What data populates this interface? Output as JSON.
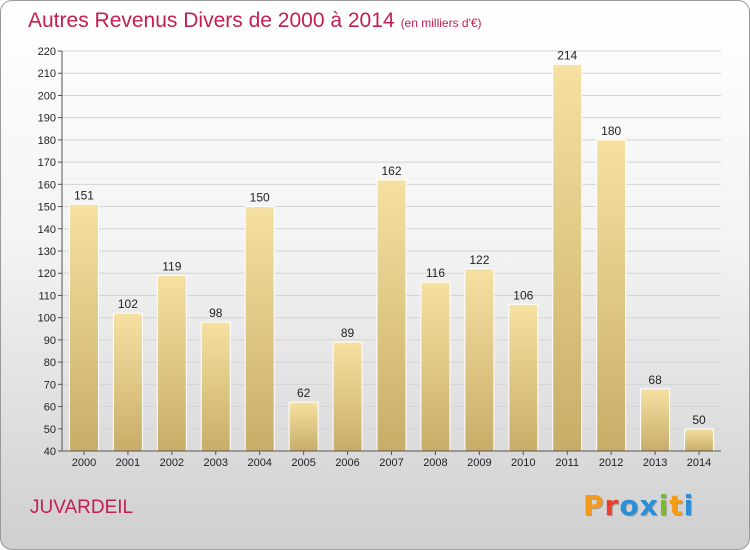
{
  "page": {
    "title": "Autres Revenus Divers de 2000 à 2014",
    "unit": "(en milliers d'€)",
    "commune": "JUVARDEIL",
    "logo": {
      "text": "Proxiti",
      "letter_colors": [
        "#f39c1a",
        "#e8402a",
        "#2a8fd6",
        "#2a8fd6",
        "#7ab928",
        "#f39c1a",
        "#2a8fd6"
      ]
    }
  },
  "chart_data": {
    "type": "bar",
    "title": "Autres Revenus Divers de 2000 à 2014",
    "subtitle": "(en milliers d'€)",
    "xlabel": "",
    "ylabel": "",
    "categories": [
      "2000",
      "2001",
      "2002",
      "2003",
      "2004",
      "2005",
      "2006",
      "2007",
      "2008",
      "2009",
      "2010",
      "2011",
      "2012",
      "2013",
      "2014"
    ],
    "values": [
      151,
      102,
      119,
      98,
      150,
      62,
      89,
      162,
      116,
      122,
      106,
      214,
      180,
      68,
      50
    ],
    "ylim": [
      40,
      220
    ],
    "ytick_step": 10,
    "grid": true,
    "data_labels": true,
    "bar_color": "#e8cf86"
  }
}
